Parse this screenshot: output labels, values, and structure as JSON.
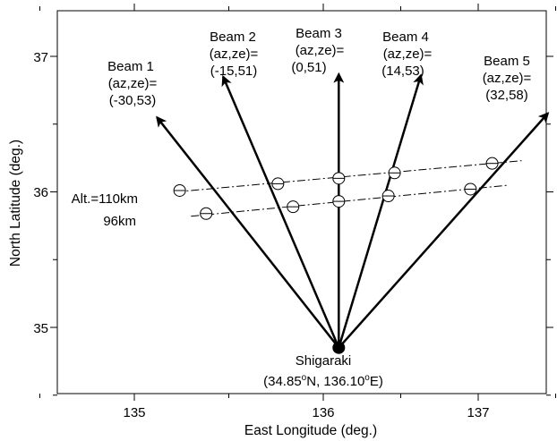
{
  "figure": {
    "xlabel": "East Longitude (deg.)",
    "ylabel": "North Latitude (deg.)",
    "x_ticks": [
      "135",
      "136",
      "137"
    ],
    "y_ticks": [
      "37",
      "36",
      "35"
    ],
    "xlim": [
      134.2,
      137.6
    ],
    "ylim": [
      34.5,
      37.3
    ]
  },
  "site": {
    "name": "Shigaraki",
    "lat_text": "34.85",
    "lon_text": "136.10",
    "deg_symbol": "o",
    "lat_suffix": "N, ",
    "lon_suffix": "E)",
    "open_paren": "(",
    "lat": 34.85,
    "lon": 136.1
  },
  "beams": [
    {
      "name": "Beam 1",
      "line1": "(az,ze)=",
      "line2": "(-30,53)",
      "az": -30,
      "ze": 53,
      "tip": [
        135.12,
        36.55
      ],
      "pt110": [
        135.24,
        36.01
      ],
      "pt96": [
        135.38,
        35.84
      ]
    },
    {
      "name": "Beam 2",
      "line1": "(az,ze)=",
      "line2": "(-15,51)",
      "az": -15,
      "ze": 51,
      "tip": [
        135.47,
        36.85
      ],
      "pt110": [
        135.76,
        36.06
      ],
      "pt96": [
        135.84,
        35.89
      ]
    },
    {
      "name": "Beam 3",
      "line1": "(az,ze)=",
      "line2": "(0,51)",
      "az": 0,
      "ze": 51,
      "tip": [
        136.1,
        36.87
      ],
      "pt110": [
        136.1,
        36.1
      ],
      "pt96": [
        136.1,
        35.93
      ]
    },
    {
      "name": "Beam 4",
      "line1": "(az,ze)=",
      "line2": "(14,53)",
      "az": 14,
      "ze": 53,
      "tip": [
        136.63,
        36.86
      ],
      "pt110": [
        136.46,
        36.14
      ],
      "pt96": [
        136.42,
        35.97
      ]
    },
    {
      "name": "Beam 5",
      "line1": "(az,ze)=",
      "line2": "(32,58)",
      "az": 32,
      "ze": 58,
      "tip": [
        137.45,
        36.58
      ],
      "pt110": [
        137.09,
        36.21
      ],
      "pt96": [
        136.95,
        36.02
      ]
    }
  ],
  "altitudes": [
    {
      "label": "Alt.=110km",
      "km": 110,
      "line": [
        [
          135.22,
          36.0
        ],
        [
          137.28,
          36.23
        ]
      ]
    },
    {
      "label": "96km",
      "km": 96,
      "line": [
        [
          135.3,
          35.82
        ],
        [
          137.2,
          36.05
        ]
      ]
    }
  ],
  "colors": {
    "ink": "#000000",
    "background": "#ffffff"
  }
}
